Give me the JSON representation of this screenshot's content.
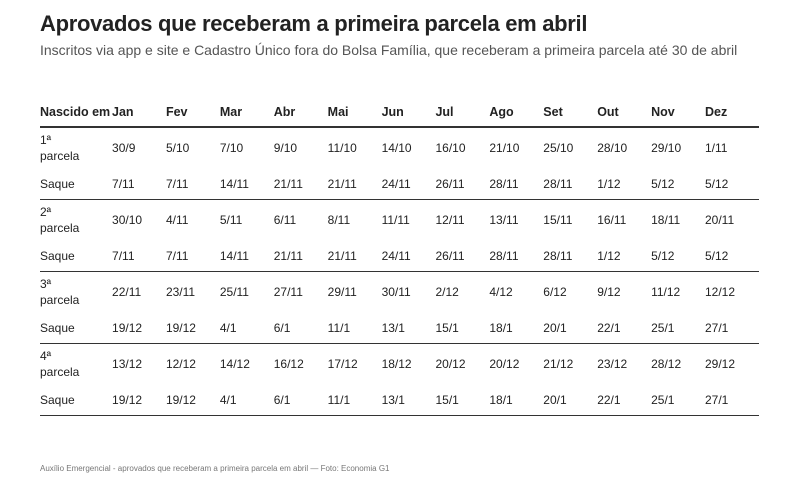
{
  "title": "Aprovados que receberam a primeira parcela em abril",
  "subtitle": "Inscritos via app e site e Cadastro Único fora do Bolsa Família, que receberam a primeira parcela até 30 de abril",
  "table": {
    "corner_header": "Nascido em",
    "months": [
      "Jan",
      "Fev",
      "Mar",
      "Abr",
      "Mai",
      "Jun",
      "Jul",
      "Ago",
      "Set",
      "Out",
      "Nov",
      "Dez"
    ],
    "rows": [
      {
        "label": "1ª parcela",
        "values": [
          "30/9",
          "5/10",
          "7/10",
          "9/10",
          "11/10",
          "14/10",
          "16/10",
          "21/10",
          "25/10",
          "28/10",
          "29/10",
          "1/11"
        ]
      },
      {
        "label": "Saque",
        "values": [
          "7/11",
          "7/11",
          "14/11",
          "21/11",
          "21/11",
          "24/11",
          "26/11",
          "28/11",
          "28/11",
          "1/12",
          "5/12",
          "5/12"
        ]
      },
      {
        "label": "2ª parcela",
        "values": [
          "30/10",
          "4/11",
          "5/11",
          "6/11",
          "8/11",
          "11/11",
          "12/11",
          "13/11",
          "15/11",
          "16/11",
          "18/11",
          "20/11"
        ]
      },
      {
        "label": "Saque",
        "values": [
          "7/11",
          "7/11",
          "14/11",
          "21/11",
          "21/11",
          "24/11",
          "26/11",
          "28/11",
          "28/11",
          "1/12",
          "5/12",
          "5/12"
        ]
      },
      {
        "label": "3ª parcela",
        "values": [
          "22/11",
          "23/11",
          "25/11",
          "27/11",
          "29/11",
          "30/11",
          "2/12",
          "4/12",
          "6/12",
          "9/12",
          "11/12",
          "12/12"
        ]
      },
      {
        "label": "Saque",
        "values": [
          "19/12",
          "19/12",
          "4/1",
          "6/1",
          "11/1",
          "13/1",
          "15/1",
          "18/1",
          "20/1",
          "22/1",
          "25/1",
          "27/1"
        ]
      },
      {
        "label": "4ª parcela",
        "values": [
          "13/12",
          "12/12",
          "14/12",
          "16/12",
          "17/12",
          "18/12",
          "20/12",
          "20/12",
          "21/12",
          "23/12",
          "28/12",
          "29/12"
        ]
      },
      {
        "label": "Saque",
        "values": [
          "19/12",
          "19/12",
          "4/1",
          "6/1",
          "11/1",
          "13/1",
          "15/1",
          "18/1",
          "20/1",
          "22/1",
          "25/1",
          "27/1"
        ]
      }
    ]
  },
  "caption": "Auxílio Emergencial - aprovados que receberam a primeira parcela em abril — Foto: Economia G1"
}
